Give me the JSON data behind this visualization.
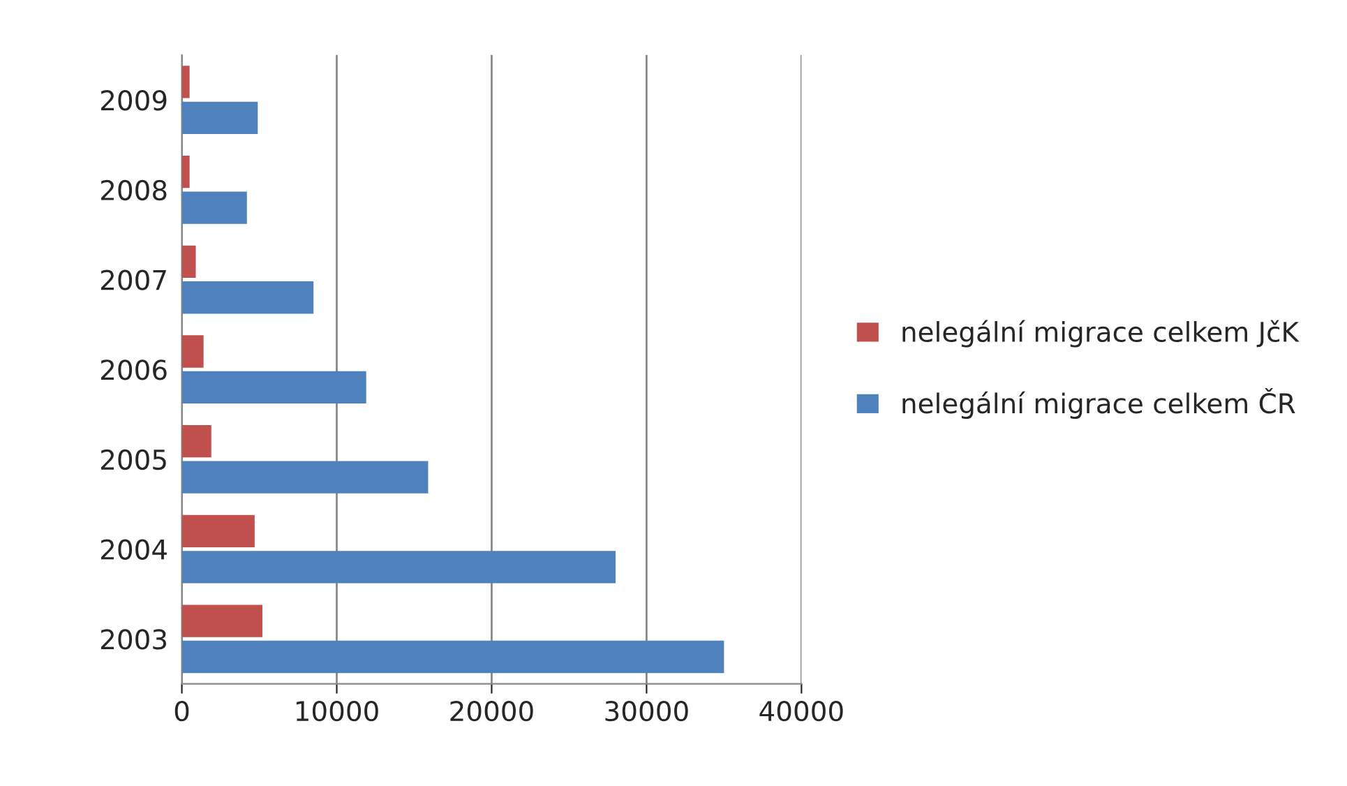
{
  "chart_data": {
    "type": "bar",
    "orientation": "horizontal",
    "categories": [
      "2009",
      "2008",
      "2007",
      "2006",
      "2005",
      "2004",
      "2003"
    ],
    "series": [
      {
        "name": "nelegální migrace celkem JčK",
        "color": "#c0504d",
        "values": [
          500,
          500,
          900,
          1400,
          1900,
          4700,
          5200
        ]
      },
      {
        "name": "nelegální migrace celkem ČR",
        "color": "#4f81bd",
        "values": [
          4900,
          4200,
          8500,
          11900,
          15900,
          28000,
          35000
        ]
      }
    ],
    "xlim": [
      0,
      40000
    ],
    "xticks": [
      0,
      10000,
      20000,
      30000,
      40000
    ],
    "grid": "x",
    "legend": "right"
  }
}
